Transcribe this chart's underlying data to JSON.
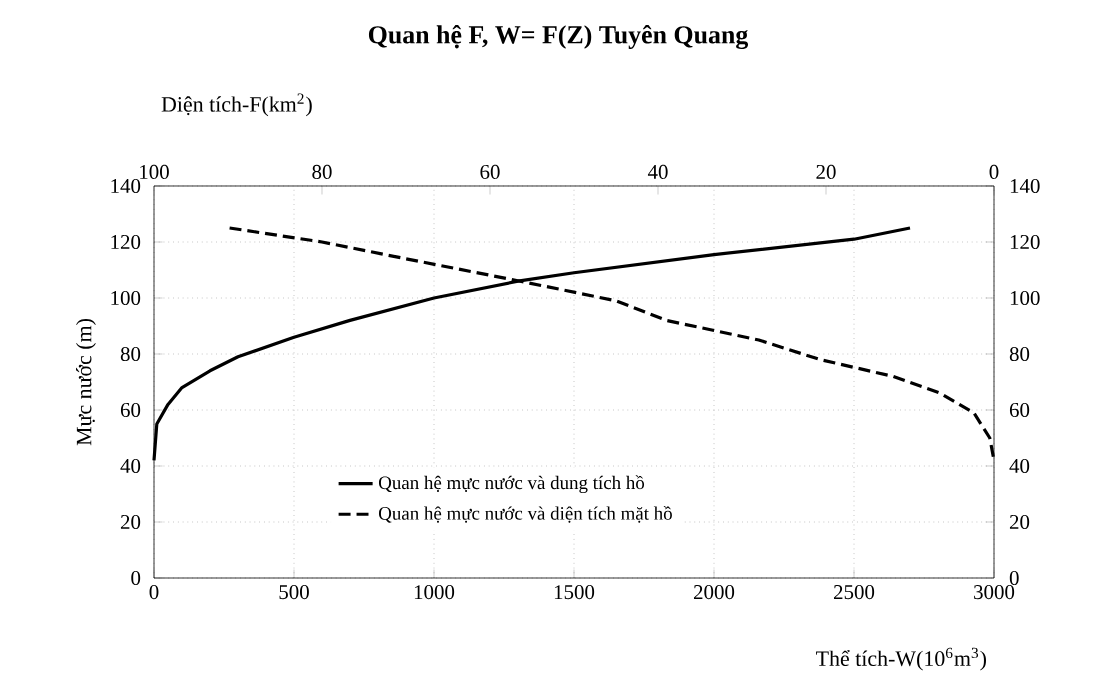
{
  "chart_data": {
    "type": "line",
    "title": "Quan hệ F, W= F(Z) Tuyên Quang",
    "xlabel": "Thể tích-W(10$^{6}$m$^{3}$)",
    "x2label": "Diện tích-F(km$^{2}$)",
    "ylabel": "Mực nước (m)",
    "xlim": [
      0,
      3000
    ],
    "xticks": [
      0,
      500,
      1000,
      1500,
      2000,
      2500,
      3000
    ],
    "x2lim": [
      100,
      0
    ],
    "x2ticks": [
      100,
      80,
      60,
      40,
      20,
      0
    ],
    "ylim": [
      0,
      140
    ],
    "yticks": [
      0,
      20,
      40,
      60,
      80,
      100,
      120,
      140
    ],
    "y2lim": [
      0,
      140
    ],
    "y2ticks": [
      0,
      20,
      40,
      60,
      80,
      100,
      120,
      140
    ],
    "grid": true,
    "legend": "bottom",
    "marker": "none",
    "series": [
      {
        "name": "Quan hệ mực nước và dung tích hồ",
        "color": "#000000",
        "line_style": "solid",
        "x": [
          0,
          10,
          50,
          100,
          200,
          300,
          500,
          700,
          1000,
          1300,
          1500,
          2000,
          2500,
          2700
        ],
        "values": [
          42,
          55,
          62,
          68,
          74,
          79,
          86,
          92,
          100,
          106,
          109,
          115.5,
          121,
          125
        ]
      },
      {
        "name": "Quan hệ mực nước và diện tích mặt hồ",
        "color": "#000000",
        "line_style": "dashed",
        "axis": "x2",
        "x": [
          91,
          80,
          70,
          56.4,
          45,
          39,
          28,
          20.7,
          12,
          6.4,
          2.4,
          0.5,
          0
        ],
        "values": [
          125,
          120,
          114,
          106,
          99,
          92,
          85,
          78,
          72,
          66,
          59,
          50,
          42
        ]
      }
    ]
  }
}
